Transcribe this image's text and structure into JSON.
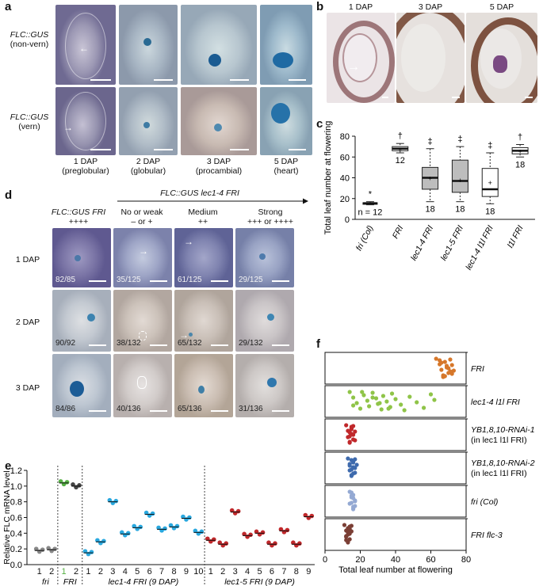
{
  "panels": {
    "a": {
      "letter": "a",
      "row_labels": [
        {
          "gene": "FLC::GUS",
          "cond": "(non-vern)"
        },
        {
          "gene": "FLC::GUS",
          "cond": "(vern)"
        }
      ],
      "columns": [
        {
          "dap": "1 DAP",
          "stage": "(preglobular)"
        },
        {
          "dap": "2 DAP",
          "stage": "(globular)"
        },
        {
          "dap": "3 DAP",
          "stage": "(procambial)"
        },
        {
          "dap": "5 DAP",
          "stage": "(heart)"
        }
      ]
    },
    "b": {
      "letter": "b",
      "columns": [
        "1 DAP",
        "3 DAP",
        "5 DAP"
      ]
    },
    "c": {
      "letter": "c"
    },
    "d": {
      "letter": "d",
      "group_title": "FLC::GUS lec1-4 FRI",
      "columns": [
        {
          "title": "FLC::GUS FRI",
          "score": "++++"
        },
        {
          "title": "No or weak",
          "score": "– or +"
        },
        {
          "title": "Medium",
          "score": "++"
        },
        {
          "title": "Strong",
          "score": "+++ or ++++"
        }
      ],
      "rows": [
        {
          "label": "1 DAP",
          "fractions": [
            "82/85",
            "35/125",
            "61/125",
            "29/125"
          ]
        },
        {
          "label": "2 DAP",
          "fractions": [
            "90/92",
            "38/132",
            "65/132",
            "29/132"
          ]
        },
        {
          "label": "3 DAP",
          "fractions": [
            "84/86",
            "40/136",
            "65/136",
            "31/136"
          ]
        }
      ]
    },
    "e": {
      "letter": "e"
    },
    "f": {
      "letter": "f"
    }
  },
  "chart_data": [
    {
      "id": "c",
      "type": "boxplot",
      "ylabel": "Total leaf number at flowering",
      "ylim": [
        0,
        80
      ],
      "yticks": [
        0,
        20,
        40,
        60,
        80
      ],
      "categories": [
        "fri (Col)",
        "FRI",
        "lec1-4 FRI",
        "lec1-5 FRI",
        "lec1-4 l1l FRI",
        "l1l FRI"
      ],
      "boxes": [
        {
          "min": 14,
          "q1": 15,
          "median": 15.5,
          "q3": 16,
          "max": 17,
          "mean": 15.5,
          "n": "n = 12",
          "mark": "*",
          "color": "#222222"
        },
        {
          "min": 64,
          "q1": 66,
          "median": 68,
          "q3": 70,
          "max": 73,
          "mean": 68,
          "n": "12",
          "mark": "†",
          "color": "#ffffff"
        },
        {
          "min": 17,
          "q1": 29,
          "median": 40,
          "q3": 50,
          "max": 68,
          "mean": 40,
          "n": "18",
          "mark": "‡",
          "color": "#bdbdbd"
        },
        {
          "min": 17,
          "q1": 26,
          "median": 37,
          "q3": 57,
          "max": 70,
          "mean": 38,
          "n": "18",
          "mark": "‡",
          "color": "#bdbdbd"
        },
        {
          "min": 15,
          "q1": 22,
          "median": 29,
          "q3": 49,
          "max": 64,
          "mean": 36,
          "n": "18",
          "mark": "‡",
          "color": "#ffffff"
        },
        {
          "min": 60,
          "q1": 63,
          "median": 66,
          "q3": 69,
          "max": 72,
          "mean": 66,
          "n": "18",
          "mark": "†",
          "color": "#ffffff"
        }
      ]
    },
    {
      "id": "e",
      "type": "scatter",
      "ylabel": "Relative FLC mRNA level",
      "ylim": [
        0,
        1.2
      ],
      "yticks": [
        0,
        0.2,
        0.4,
        0.6,
        0.8,
        1.0,
        1.2
      ],
      "groups": [
        {
          "name": "fri",
          "lines": [
            "1",
            "2"
          ],
          "means": [
            0.18,
            0.19
          ],
          "colors": [
            "#888888",
            "#888888"
          ]
        },
        {
          "name": "FRI",
          "lines": [
            "1",
            "2"
          ],
          "means": [
            1.04,
            1.0
          ],
          "colors": [
            "#55b043",
            "#444444"
          ]
        },
        {
          "name": "lec1-4 FRI (9 DAP)",
          "lines": [
            "1",
            "2",
            "3",
            "4",
            "5",
            "6",
            "7",
            "8",
            "9",
            "10"
          ],
          "means": [
            0.15,
            0.29,
            0.8,
            0.39,
            0.47,
            0.64,
            0.45,
            0.48,
            0.59,
            0.41
          ],
          "colors": [
            "#29a8df"
          ]
        },
        {
          "name": "lec1-5 FRI (9 DAP)",
          "lines": [
            "1",
            "2",
            "3",
            "4",
            "5",
            "6",
            "7",
            "8",
            "9"
          ],
          "means": [
            0.31,
            0.26,
            0.67,
            0.37,
            0.4,
            0.26,
            0.43,
            0.26,
            0.61
          ],
          "colors": [
            "#c0282b"
          ]
        }
      ]
    },
    {
      "id": "f",
      "type": "strip",
      "xlabel": "Total leaf number at flowering",
      "xlim": [
        0,
        80
      ],
      "xticks": [
        0,
        20,
        40,
        60,
        80
      ],
      "rows": [
        {
          "label": "FRI",
          "color": "#d6772a",
          "values": [
            63,
            65,
            66,
            67,
            68,
            69,
            70,
            71,
            72,
            73,
            68,
            66,
            70,
            72,
            65,
            69,
            71,
            67
          ]
        },
        {
          "label": "lec1-4 l1l FRI",
          "color": "#8fc448",
          "values": [
            14,
            16,
            18,
            20,
            22,
            24,
            25,
            27,
            29,
            30,
            32,
            33,
            35,
            37,
            38,
            40,
            43,
            45,
            48,
            52,
            56,
            60,
            62,
            16,
            21,
            27,
            31,
            36
          ]
        },
        {
          "label": "YB1,8,10-RNAi-1",
          "label2": "(in lec1 l1l FRI)",
          "color": "#c0282b",
          "values": [
            12,
            13,
            14,
            14,
            15,
            15,
            16,
            16,
            17,
            13,
            14,
            15,
            16,
            17,
            15,
            14
          ]
        },
        {
          "label": "YB1,8,10-RNAi-2",
          "label2": "(in lec1 l1l FRI)",
          "color": "#3e6aad",
          "values": [
            13,
            14,
            15,
            15,
            16,
            16,
            17,
            17,
            18,
            14,
            15,
            16,
            17,
            16,
            15,
            14
          ]
        },
        {
          "label": "fri (Col)",
          "color": "#94a9d3",
          "values": [
            14,
            15,
            15,
            16,
            16,
            17,
            17,
            15,
            16,
            14,
            16,
            15,
            17,
            16
          ]
        },
        {
          "label": "FRI flc-3",
          "color": "#7b3f35",
          "values": [
            11,
            12,
            12,
            13,
            13,
            14,
            14,
            15,
            15,
            12,
            13,
            14,
            13,
            12,
            14,
            13
          ]
        }
      ]
    }
  ]
}
